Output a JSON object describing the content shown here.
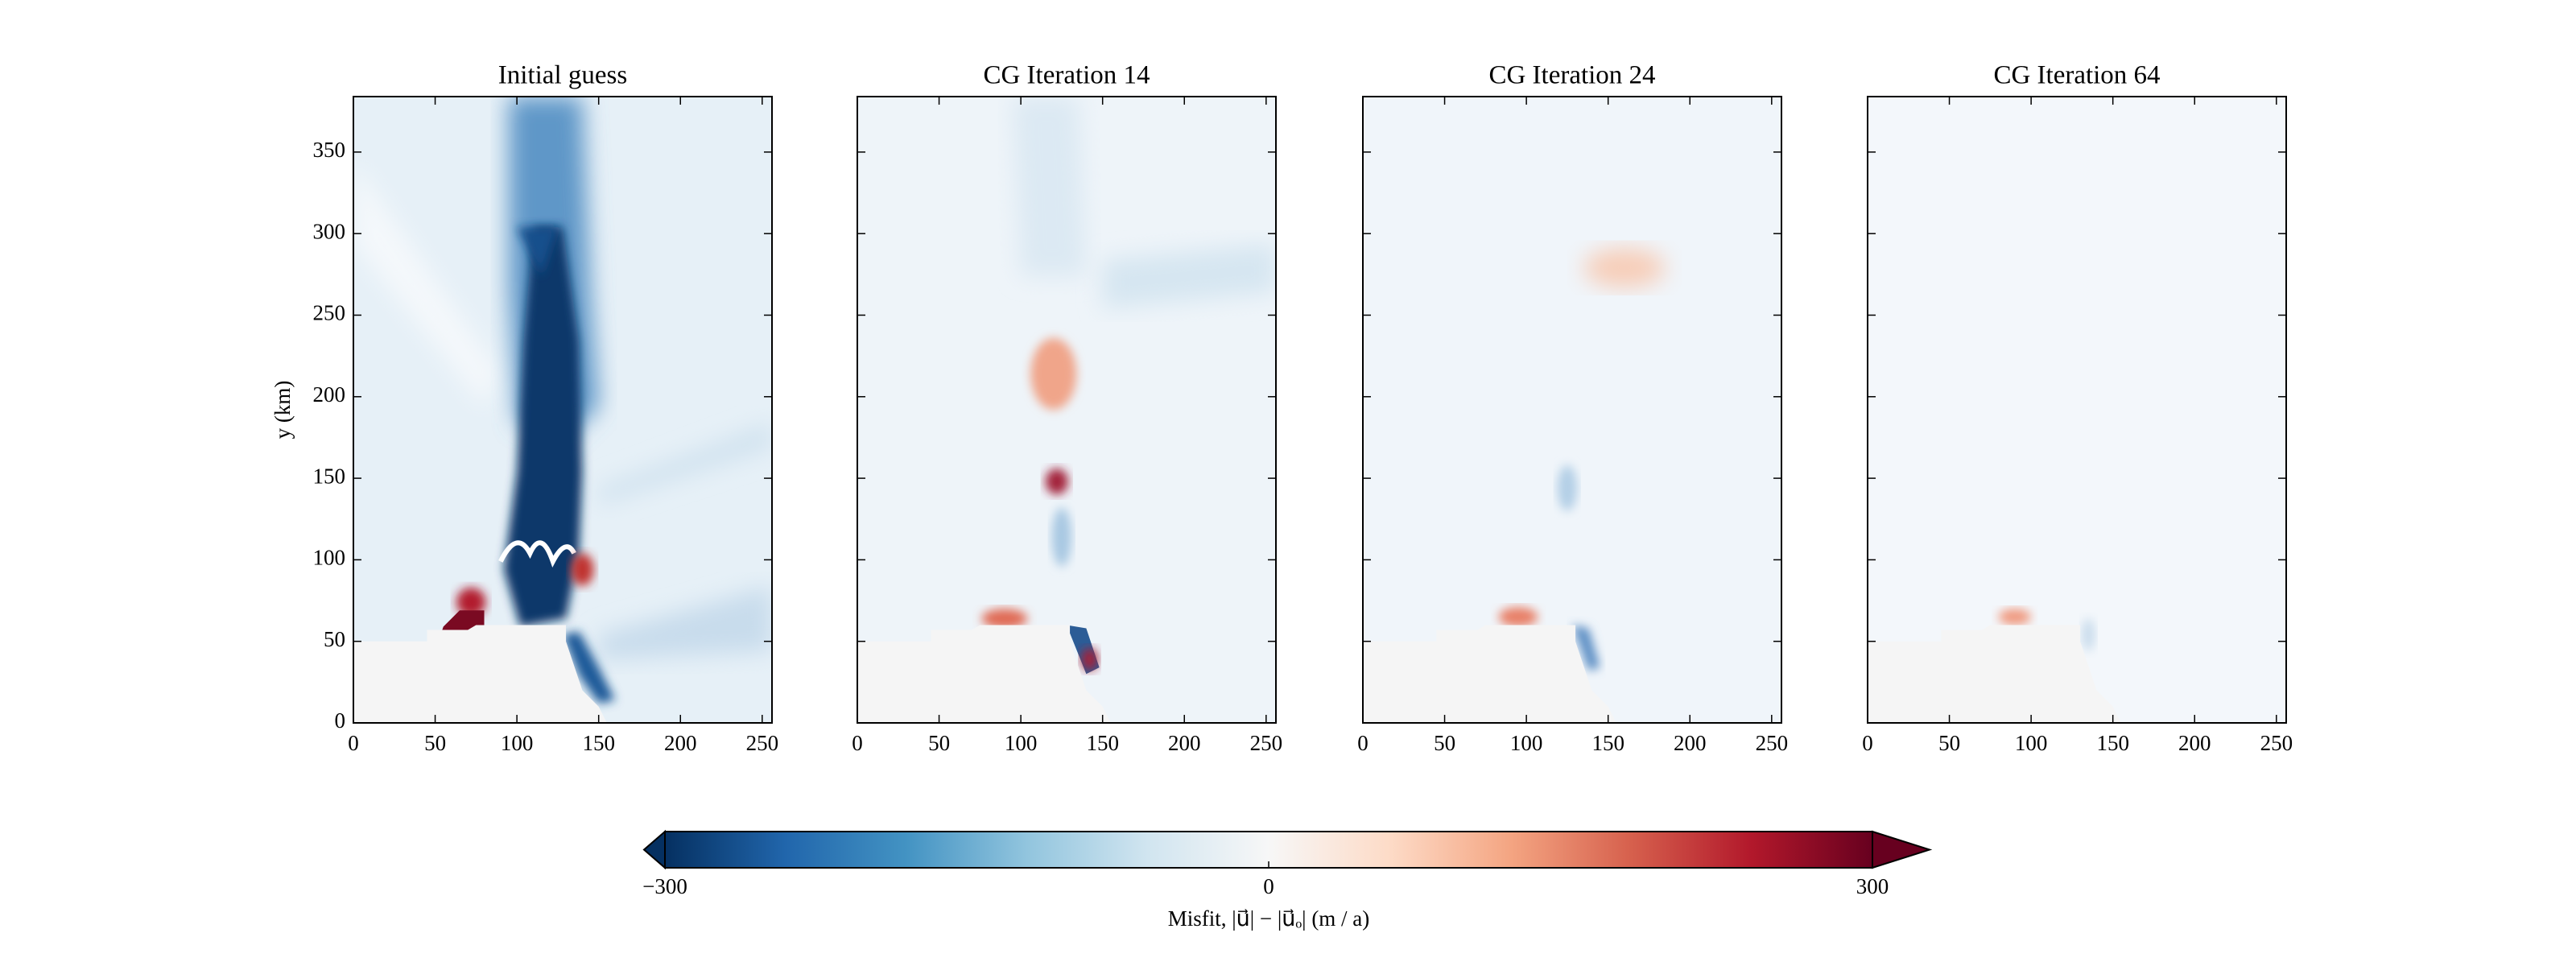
{
  "chart_data": [
    {
      "type": "heatmap",
      "title": "Initial guess",
      "ylabel": "y (km)",
      "xlim": [
        0,
        256
      ],
      "xticks": [
        0,
        50,
        100,
        150,
        200,
        250
      ],
      "ylim": [
        0,
        384
      ],
      "yticks": [
        0,
        50,
        100,
        150,
        200,
        250,
        300,
        350
      ],
      "ytick_labels": true
    },
    {
      "type": "heatmap",
      "title": "CG Iteration 14",
      "xlim": [
        0,
        256
      ],
      "xticks": [
        0,
        50,
        100,
        150,
        200,
        250
      ],
      "ylim": [
        0,
        384
      ],
      "yticks": [
        0,
        50,
        100,
        150,
        200,
        250,
        300,
        350
      ],
      "ytick_labels": false
    },
    {
      "type": "heatmap",
      "title": "CG Iteration 24",
      "xlim": [
        0,
        256
      ],
      "xticks": [
        0,
        50,
        100,
        150,
        200,
        250
      ],
      "ylim": [
        0,
        384
      ],
      "yticks": [
        0,
        50,
        100,
        150,
        200,
        250,
        300,
        350
      ],
      "ytick_labels": false
    },
    {
      "type": "heatmap",
      "title": "CG Iteration 64",
      "xlim": [
        0,
        256
      ],
      "xticks": [
        0,
        50,
        100,
        150,
        200,
        250
      ],
      "ylim": [
        0,
        384
      ],
      "yticks": [
        0,
        50,
        100,
        150,
        200,
        250,
        300,
        350
      ],
      "ytick_labels": false
    }
  ],
  "colorbar": {
    "label": "Misfit, |u⃗| − |u⃗ₒ| (m / a)",
    "lim": [
      -300,
      300
    ],
    "ticks": [
      {
        "value": -300,
        "label": "−300"
      },
      0,
      300
    ],
    "colors": [
      "#053061",
      "#2166ac",
      "#4393c3",
      "#92c5de",
      "#d1e5f0",
      "#f7f7f7",
      "#fddbc7",
      "#f4a582",
      "#d6604d",
      "#b2182b",
      "#67001f"
    ]
  }
}
